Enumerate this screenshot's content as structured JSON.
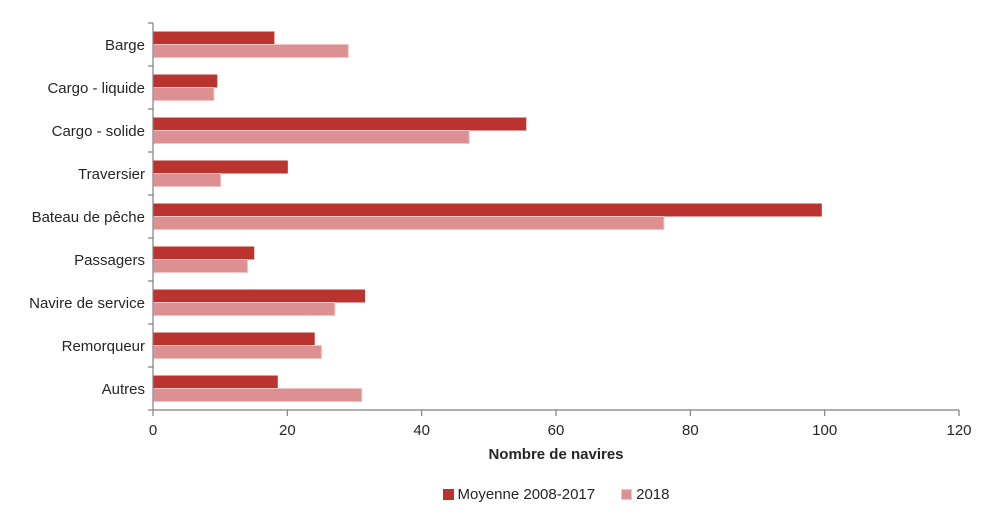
{
  "chart_data": {
    "type": "bar",
    "orientation": "horizontal",
    "title": "",
    "xlabel": "Nombre de navires",
    "ylabel": "",
    "xlim": [
      0,
      120
    ],
    "xticks": [
      0,
      20,
      40,
      60,
      80,
      100,
      120
    ],
    "grid": false,
    "legend_position": "bottom",
    "categories": [
      "Barge",
      "Cargo - liquide",
      "Cargo - solide",
      "Traversier",
      "Bateau de pêche",
      "Passagers",
      "Navire de service",
      "Remorqueur",
      "Autres"
    ],
    "series": [
      {
        "name": "Moyenne 2008-2017",
        "color": "#bb332f",
        "values": [
          18,
          9.5,
          55.5,
          20,
          99.5,
          15,
          31.5,
          24,
          18.5
        ]
      },
      {
        "name": "2018",
        "color": "#dd9092",
        "border_color": "#f0c4c4",
        "values": [
          29,
          9,
          47,
          10,
          76,
          14,
          27,
          25,
          31
        ]
      }
    ],
    "colors": {
      "axis": "#7f7f7f",
      "text": "#262626"
    }
  }
}
